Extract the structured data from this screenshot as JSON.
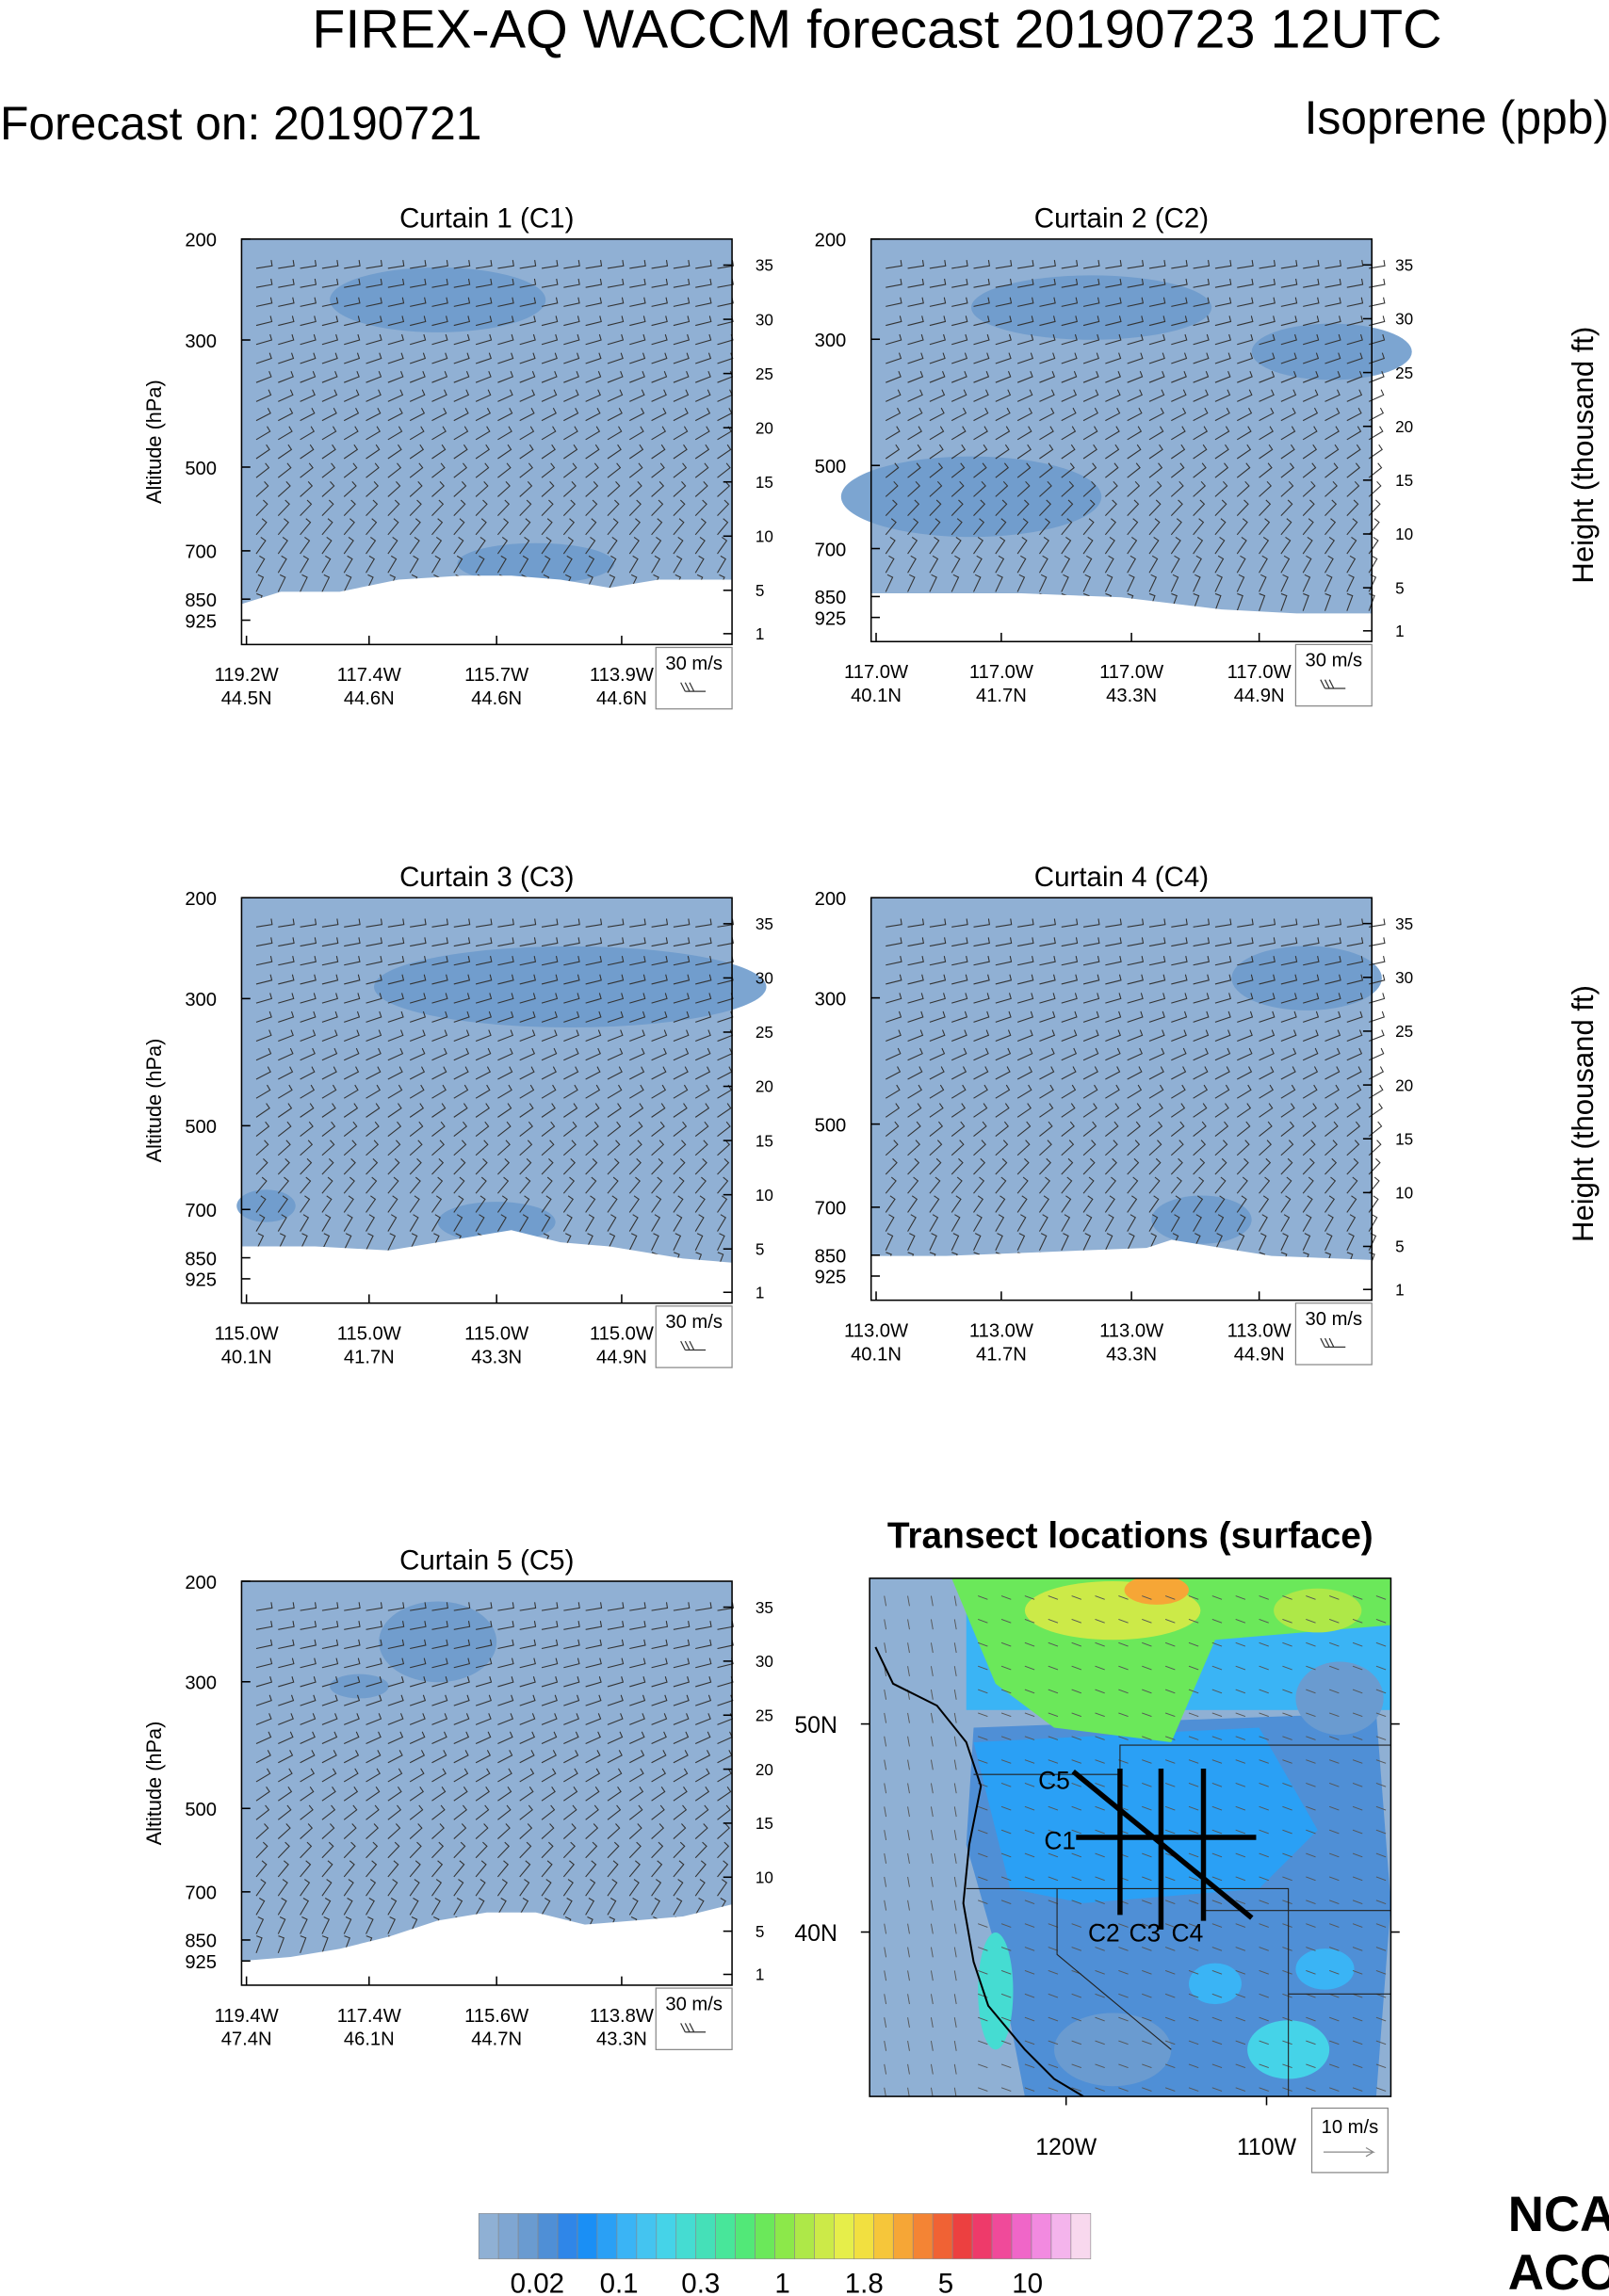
{
  "title": "FIREX-AQ WACCM forecast 20190723 12UTC",
  "forecast_on": "Forecast on: 20190721",
  "species": "Isoprene (ppb)",
  "chart_data": [
    {
      "type": "curtain",
      "title": "Curtain 1 (C1)",
      "ylabel": "Altitude (hPa)",
      "ylog": true,
      "ylim": [
        200,
        1020
      ],
      "yticks": [
        200,
        300,
        500,
        700,
        850,
        925
      ],
      "y2lim": [
        0,
        37.4
      ],
      "y2ticks": [
        1,
        5,
        10,
        15,
        20,
        25,
        30,
        35
      ],
      "x_labels": [
        [
          "119.2W",
          "44.5N"
        ],
        [
          "117.4W",
          "44.6N"
        ],
        [
          "115.7W",
          "44.6N"
        ],
        [
          "113.9W",
          "44.6N"
        ]
      ],
      "wind_key": "30 m/s"
    },
    {
      "type": "curtain",
      "title": "Curtain 2 (C2)",
      "y2label": "Height (thousand ft)",
      "ylog": true,
      "ylim": [
        200,
        1020
      ],
      "yticks": [
        200,
        300,
        500,
        700,
        850,
        925
      ],
      "y2lim": [
        0,
        37.4
      ],
      "y2ticks": [
        1,
        5,
        10,
        15,
        20,
        25,
        30,
        35
      ],
      "x_labels": [
        [
          "117.0W",
          "40.1N"
        ],
        [
          "117.0W",
          "41.7N"
        ],
        [
          "117.0W",
          "43.3N"
        ],
        [
          "117.0W",
          "44.9N"
        ]
      ],
      "wind_key": "30 m/s"
    },
    {
      "type": "curtain",
      "title": "Curtain 3 (C3)",
      "ylabel": "Altitude (hPa)",
      "ylog": true,
      "ylim": [
        200,
        1020
      ],
      "yticks": [
        200,
        300,
        500,
        700,
        850,
        925
      ],
      "y2lim": [
        0,
        37.4
      ],
      "y2ticks": [
        1,
        5,
        10,
        15,
        20,
        25,
        30,
        35
      ],
      "x_labels": [
        [
          "115.0W",
          "40.1N"
        ],
        [
          "115.0W",
          "41.7N"
        ],
        [
          "115.0W",
          "43.3N"
        ],
        [
          "115.0W",
          "44.9N"
        ]
      ],
      "wind_key": "30 m/s"
    },
    {
      "type": "curtain",
      "title": "Curtain 4 (C4)",
      "y2label": "Height (thousand ft)",
      "ylog": true,
      "ylim": [
        200,
        1020
      ],
      "yticks": [
        200,
        300,
        500,
        700,
        850,
        925
      ],
      "y2lim": [
        0,
        37.4
      ],
      "y2ticks": [
        1,
        5,
        10,
        15,
        20,
        25,
        30,
        35
      ],
      "x_labels": [
        [
          "113.0W",
          "40.1N"
        ],
        [
          "113.0W",
          "41.7N"
        ],
        [
          "113.0W",
          "43.3N"
        ],
        [
          "113.0W",
          "44.9N"
        ]
      ],
      "wind_key": "30 m/s"
    },
    {
      "type": "curtain",
      "title": "Curtain 5 (C5)",
      "ylabel": "Altitude (hPa)",
      "ylog": true,
      "ylim": [
        200,
        1020
      ],
      "yticks": [
        200,
        300,
        500,
        700,
        850,
        925
      ],
      "y2lim": [
        0,
        37.4
      ],
      "y2ticks": [
        1,
        5,
        10,
        15,
        20,
        25,
        30,
        35
      ],
      "x_labels": [
        [
          "119.4W",
          "47.4N"
        ],
        [
          "117.4W",
          "46.1N"
        ],
        [
          "115.6W",
          "44.7N"
        ],
        [
          "113.8W",
          "43.3N"
        ]
      ],
      "wind_key": "30 m/s"
    },
    {
      "type": "map",
      "title": "Transect locations (surface)",
      "xlim": [
        -129.8,
        -103.8
      ],
      "ylim": [
        32.1,
        57.0
      ],
      "xticks": [
        {
          "value": -120,
          "label": "120W"
        },
        {
          "value": -110,
          "label": "110W"
        }
      ],
      "yticks": [
        {
          "value": 40,
          "label": "40N"
        },
        {
          "value": 50,
          "label": "50N"
        }
      ],
      "transects": [
        "C5",
        "C1",
        "C2",
        "C3",
        "C4"
      ],
      "wind_key": "10 m/s"
    }
  ],
  "colorbar": {
    "colors": [
      "#8fb0d4",
      "#7fa6d2",
      "#6a9bd0",
      "#4f8fd6",
      "#2f86e8",
      "#1a8ff5",
      "#2aa0f5",
      "#3ab4f5",
      "#44c4f0",
      "#45d3e8",
      "#45dcd2",
      "#45e0b8",
      "#48e69a",
      "#52e878",
      "#6be85a",
      "#8ce84a",
      "#aee848",
      "#ccea48",
      "#e6ee4a",
      "#f2e040",
      "#f6c63a",
      "#f6a636",
      "#f48434",
      "#f06234",
      "#ec4040",
      "#ee3a6a",
      "#f04a9a",
      "#f066c8",
      "#f28ae0",
      "#f4b4ec",
      "#f8d8ee"
    ],
    "labels": [
      0.02,
      0.1,
      0.3,
      1,
      1.8,
      5,
      10
    ]
  },
  "logo": [
    "NCA",
    "ACO"
  ]
}
